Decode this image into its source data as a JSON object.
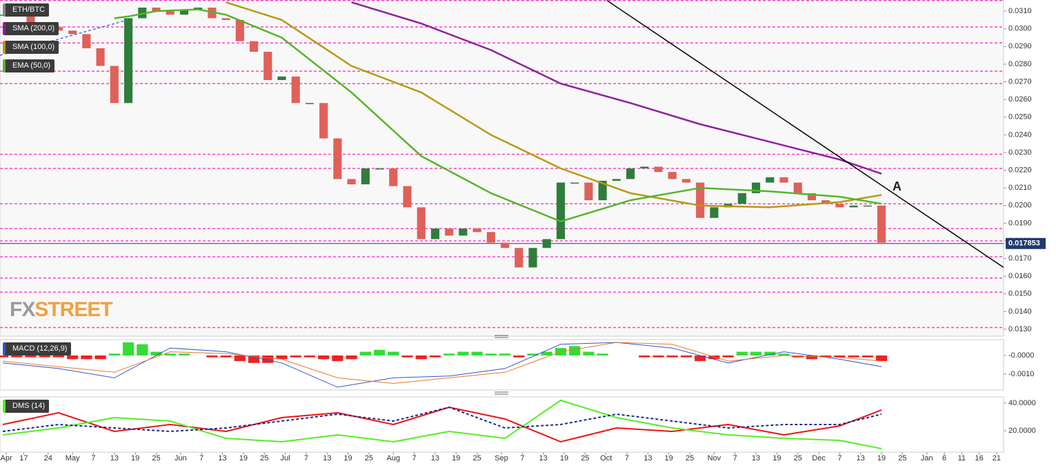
{
  "chart_data": [
    {
      "type": "candlestick",
      "title": "ETH/BTC",
      "x": [
        10,
        14,
        18,
        22,
        26,
        30,
        34,
        38,
        42,
        46,
        50,
        54,
        58,
        62,
        66,
        70,
        74,
        78,
        82,
        86,
        90,
        94,
        98,
        102,
        106,
        110,
        114,
        118,
        122,
        126,
        130,
        134,
        138,
        142,
        146,
        150,
        154,
        158,
        162,
        166,
        170,
        174,
        178,
        182,
        186,
        190,
        194,
        198,
        202,
        206,
        210,
        214,
        218,
        222,
        226,
        230,
        234,
        238,
        242,
        246,
        250,
        254,
        258,
        262
      ],
      "values": [
        0.0308,
        0.0307,
        0.0303,
        0.0301,
        0.0299,
        0.0297,
        0.0289,
        0.0279,
        0.0258,
        0.0306,
        0.0312,
        0.031,
        0.0308,
        0.0311,
        0.0312,
        0.0306,
        0.0305,
        0.0293,
        0.0287,
        0.0271,
        0.0273,
        0.0258,
        0.0258,
        0.0238,
        0.0215,
        0.0212,
        0.0221,
        0.0221,
        0.0211,
        0.0199,
        0.0181,
        0.0187,
        0.0183,
        0.0187,
        0.0185,
        0.0179,
        0.0176,
        0.0165,
        0.0176,
        0.0181,
        0.0213,
        0.0213,
        0.0203,
        0.0214,
        0.0215,
        0.0221,
        0.0222,
        0.0219,
        0.0215,
        0.0213,
        0.0193,
        0.0199,
        0.0201,
        0.0207,
        0.0213,
        0.0216,
        0.0213,
        0.0207,
        0.0203,
        0.0201,
        0.0199,
        0.02,
        0.02,
        0.0179
      ],
      "up_color": "#2f7d3c",
      "down_color": "#e0605a",
      "overlays": [
        {
          "name": "SMA (200,0)",
          "color": "#8e1f9e",
          "x": [
            110,
            130,
            150,
            170,
            190,
            210,
            230,
            250,
            262
          ],
          "values": [
            0.0315,
            0.0303,
            0.0288,
            0.0269,
            0.0258,
            0.0246,
            0.0236,
            0.0226,
            0.0218
          ]
        },
        {
          "name": "SMA (100,0)",
          "color": "#b59a12",
          "x": [
            74,
            90,
            110,
            130,
            150,
            170,
            190,
            210,
            230,
            250,
            262
          ],
          "values": [
            0.0315,
            0.0305,
            0.0279,
            0.0264,
            0.024,
            0.0221,
            0.0207,
            0.02,
            0.0199,
            0.0202,
            0.0206
          ]
        },
        {
          "name": "EMA (50,0)",
          "color": "#55b52a",
          "x": [
            42,
            46,
            54,
            66,
            74,
            90,
            110,
            130,
            150,
            170,
            190,
            210,
            230,
            250,
            262
          ],
          "values": [
            0.0306,
            0.0307,
            0.031,
            0.0311,
            0.0308,
            0.0295,
            0.0264,
            0.0228,
            0.0207,
            0.0191,
            0.0203,
            0.021,
            0.0208,
            0.0205,
            0.0201
          ]
        }
      ],
      "levels": [
        0.0316,
        0.0301,
        0.0292,
        0.0276,
        0.0269,
        0.0229,
        0.0221,
        0.0201,
        0.0187,
        0.018,
        0.0171,
        0.0159,
        0.0151,
        0.0131
      ],
      "level_color": "#ff3ec8",
      "trend_lines": [
        {
          "color": "#000000",
          "dashed": false,
          "x": [
            183.3,
            297
          ],
          "values": [
            0.0316,
            0.0165
          ]
        },
        {
          "color": "#3a7bd5",
          "dashed": true,
          "x": [
            9.2,
            45.8
          ],
          "values": [
            0.0285,
            0.0305
          ]
        }
      ],
      "last_value": 0.017853,
      "last_color": "#1f3a6e",
      "annotation": "A",
      "watermark": [
        "FX",
        "STREET"
      ],
      "xlim": [
        9.2,
        297
      ],
      "ylim": [
        0.01261,
        0.03163
      ],
      "yticks": [
        {
          "value": 0.013,
          "label": "0.0130"
        },
        {
          "value": 0.014,
          "label": "0.0140"
        },
        {
          "value": 0.015,
          "label": "0.0150"
        },
        {
          "value": 0.016,
          "label": "0.0160"
        },
        {
          "value": 0.017,
          "label": "0.0170"
        },
        {
          "value": 0.018,
          "label": "0.0180"
        },
        {
          "value": 0.019,
          "label": "0.0190"
        },
        {
          "value": 0.02,
          "label": "0.0200"
        },
        {
          "value": 0.021,
          "label": "0.0210"
        },
        {
          "value": 0.022,
          "label": "0.0220"
        },
        {
          "value": 0.023,
          "label": "0.0230"
        },
        {
          "value": 0.024,
          "label": "0.0240"
        },
        {
          "value": 0.025,
          "label": "0.0250"
        },
        {
          "value": 0.026,
          "label": "0.0260"
        },
        {
          "value": 0.027,
          "label": "0.0270"
        },
        {
          "value": 0.028,
          "label": "0.0280"
        },
        {
          "value": 0.029,
          "label": "0.0290"
        },
        {
          "value": 0.03,
          "label": "0.0300"
        },
        {
          "value": 0.031,
          "label": "0.0310"
        }
      ]
    },
    {
      "type": "macd",
      "title": "MACD (12,26,9)",
      "x": [
        10,
        14,
        18,
        22,
        26,
        30,
        34,
        38,
        42,
        46,
        50,
        54,
        58,
        62,
        66,
        70,
        74,
        78,
        82,
        86,
        90,
        94,
        98,
        102,
        106,
        110,
        114,
        118,
        122,
        126,
        130,
        134,
        138,
        142,
        146,
        150,
        154,
        158,
        162,
        166,
        170,
        174,
        178,
        182,
        186,
        190,
        194,
        198,
        202,
        206,
        210,
        214,
        218,
        222,
        226,
        230,
        234,
        238,
        242,
        246,
        250,
        254,
        258,
        262
      ],
      "values": [
        -0.0001,
        -0.0001,
        -0.0001,
        -0.0001,
        -0.0001,
        -0.0002,
        -0.0002,
        -0.0002,
        0.0001,
        0.0007,
        0.0006,
        0.0002,
        0.0001,
        0.0001,
        0,
        -0.0001,
        -0.0001,
        -0.0003,
        -0.0004,
        -0.0004,
        -0.0002,
        -0.0001,
        -0.0001,
        -0.0002,
        -0.0003,
        -0.0002,
        0.0002,
        0.0003,
        0.0002,
        -0.0001,
        -0.0002,
        -0.0001,
        0.0001,
        0.0002,
        0.0002,
        0.0001,
        0.0001,
        -0.0001,
        0.0001,
        0.0002,
        0.0004,
        0.0005,
        0.0002,
        0.0001,
        0,
        0,
        -0.0001,
        -0.0001,
        -0.0001,
        -0.0001,
        -0.0003,
        -0.0002,
        -0.0001,
        0.0002,
        0.0002,
        0.0002,
        0.0001,
        -0.0001,
        -0.0002,
        -0.0001,
        -0.0001,
        -0.0001,
        -0.0001,
        -0.0003
      ],
      "up_color": "#33dd33",
      "down_color": "#ee2222",
      "series": [
        {
          "color": "#3355cc",
          "x": [
            10,
            26,
            42,
            58,
            74,
            90,
            106,
            122,
            138,
            154,
            170,
            186,
            202,
            218,
            234,
            250,
            262
          ],
          "values": [
            -0.0004,
            -0.0007,
            -0.0012,
            0.0004,
            0.0002,
            -0.0004,
            -0.0017,
            -0.0012,
            -0.0011,
            -0.0007,
            0.0006,
            0.0007,
            0.0004,
            -0.0004,
            0.0002,
            -0.0002,
            -0.0006
          ]
        },
        {
          "color": "#e8782a",
          "x": [
            10,
            26,
            42,
            58,
            74,
            90,
            106,
            122,
            138,
            154,
            170,
            186,
            202,
            218,
            234,
            250,
            262
          ],
          "values": [
            -0.0003,
            -0.0006,
            -0.0009,
            0.0002,
            0.0001,
            -0.0002,
            -0.0012,
            -0.0015,
            -0.0012,
            -0.0009,
            0.0002,
            0.0007,
            0.0006,
            -0.0003,
            0,
            -0.0001,
            -0.0003
          ]
        }
      ],
      "xlim": [
        9.2,
        297
      ],
      "ylim": [
        -0.00185,
        0.00085
      ],
      "yticks": [
        {
          "value": 0,
          "label": "-0.0000"
        },
        {
          "value": -0.001,
          "label": "-0.0010"
        }
      ]
    },
    {
      "type": "line",
      "title": "DMS (14)",
      "series": [
        {
          "color": "#ee1111",
          "dashed": false,
          "x": [
            10,
            26,
            42,
            58,
            74,
            90,
            106,
            122,
            138,
            154,
            170,
            186,
            202,
            218,
            234,
            250,
            262
          ],
          "values": [
            24.5,
            33,
            19.5,
            24.5,
            19.5,
            29.5,
            33,
            24.5,
            37,
            28.5,
            12,
            22,
            19.5,
            24.5,
            17,
            23.5,
            35
          ]
        },
        {
          "color": "#55ee22",
          "dashed": false,
          "x": [
            10,
            26,
            42,
            58,
            74,
            90,
            106,
            122,
            138,
            154,
            170,
            186,
            202,
            218,
            234,
            250,
            262
          ],
          "values": [
            17,
            22,
            29.5,
            27,
            14.5,
            12,
            17,
            12,
            19.5,
            14.5,
            42,
            29.5,
            22,
            17,
            14.5,
            13,
            7
          ]
        },
        {
          "color": "#1a2a8a",
          "dashed": true,
          "x": [
            10,
            26,
            42,
            58,
            74,
            90,
            106,
            122,
            138,
            154,
            170,
            186,
            202,
            218,
            234,
            250,
            262
          ],
          "values": [
            19.5,
            24.5,
            22,
            19.5,
            22,
            27,
            32,
            27,
            37,
            22,
            24.5,
            32,
            27,
            22,
            24.5,
            24.5,
            32
          ]
        }
      ],
      "xlim": [
        9.2,
        297
      ],
      "ylim": [
        4.5,
        44.5
      ],
      "yticks": [
        {
          "value": 40,
          "label": "40.0000"
        },
        {
          "value": 20,
          "label": "20.0000"
        }
      ],
      "xticks": [
        {
          "value": 11,
          "label": "Apr"
        },
        {
          "value": 16,
          "label": "17"
        },
        {
          "value": 23,
          "label": "24"
        },
        {
          "value": 30,
          "label": "May"
        },
        {
          "value": 36,
          "label": "7"
        },
        {
          "value": 42,
          "label": "13"
        },
        {
          "value": 48,
          "label": "19"
        },
        {
          "value": 54,
          "label": "25"
        },
        {
          "value": 61,
          "label": "Jun"
        },
        {
          "value": 67,
          "label": "7"
        },
        {
          "value": 73,
          "label": "13"
        },
        {
          "value": 79,
          "label": "19"
        },
        {
          "value": 85,
          "label": "25"
        },
        {
          "value": 91,
          "label": "Jul"
        },
        {
          "value": 97,
          "label": "7"
        },
        {
          "value": 103,
          "label": "13"
        },
        {
          "value": 109,
          "label": "19"
        },
        {
          "value": 115,
          "label": "25"
        },
        {
          "value": 122,
          "label": "Aug"
        },
        {
          "value": 128,
          "label": "7"
        },
        {
          "value": 134,
          "label": "13"
        },
        {
          "value": 140,
          "label": "19"
        },
        {
          "value": 146,
          "label": "25"
        },
        {
          "value": 153,
          "label": "Sep"
        },
        {
          "value": 159,
          "label": "7"
        },
        {
          "value": 165,
          "label": "13"
        },
        {
          "value": 171,
          "label": "19"
        },
        {
          "value": 177,
          "label": "25"
        },
        {
          "value": 183,
          "label": "Oct"
        },
        {
          "value": 189,
          "label": "7"
        },
        {
          "value": 195,
          "label": "13"
        },
        {
          "value": 201,
          "label": "19"
        },
        {
          "value": 207,
          "label": "25"
        },
        {
          "value": 214,
          "label": "Nov"
        },
        {
          "value": 220,
          "label": "7"
        },
        {
          "value": 226,
          "label": "13"
        },
        {
          "value": 232,
          "label": "19"
        },
        {
          "value": 238,
          "label": "25"
        },
        {
          "value": 244,
          "label": "Dec"
        },
        {
          "value": 250,
          "label": "7"
        },
        {
          "value": 256,
          "label": "13"
        },
        {
          "value": 262,
          "label": "19"
        },
        {
          "value": 268,
          "label": "25"
        },
        {
          "value": 275,
          "label": "Jan"
        },
        {
          "value": 280,
          "label": "6"
        },
        {
          "value": 285,
          "label": "11"
        },
        {
          "value": 290,
          "label": "16"
        },
        {
          "value": 295,
          "label": "21"
        }
      ]
    }
  ]
}
